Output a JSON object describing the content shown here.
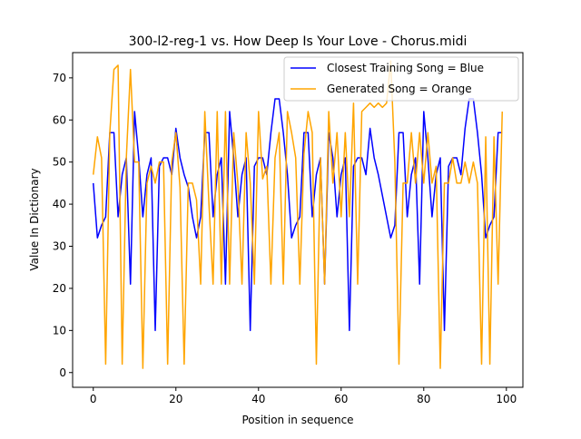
{
  "chart_data": {
    "type": "line",
    "title": "300-l2-reg-1 vs. How Deep Is Your Love - Chorus.midi",
    "xlabel": "Position in sequence",
    "ylabel": "Value In Dictionary",
    "xlim": [
      -5,
      104
    ],
    "ylim": [
      -3.5,
      76
    ],
    "xticks": [
      0,
      20,
      40,
      60,
      80,
      100
    ],
    "yticks": [
      0,
      10,
      20,
      30,
      40,
      50,
      60,
      70
    ],
    "grid": false,
    "legend_position": "upper right",
    "x": [
      0,
      1,
      2,
      3,
      4,
      5,
      6,
      7,
      8,
      9,
      10,
      11,
      12,
      13,
      14,
      15,
      16,
      17,
      18,
      19,
      20,
      21,
      22,
      23,
      24,
      25,
      26,
      27,
      28,
      29,
      30,
      31,
      32,
      33,
      34,
      35,
      36,
      37,
      38,
      39,
      40,
      41,
      42,
      43,
      44,
      45,
      46,
      47,
      48,
      49,
      50,
      51,
      52,
      53,
      54,
      55,
      56,
      57,
      58,
      59,
      60,
      61,
      62,
      63,
      64,
      65,
      66,
      67,
      68,
      69,
      70,
      71,
      72,
      73,
      74,
      75,
      76,
      77,
      78,
      79,
      80,
      81,
      82,
      83,
      84,
      85,
      86,
      87,
      88,
      89,
      90,
      91,
      92,
      93,
      94,
      95,
      96,
      97,
      98,
      99
    ],
    "series": [
      {
        "name": "Closest Training Song = Blue",
        "color": "#0000ff",
        "values": [
          45,
          32,
          35,
          37,
          57,
          57,
          37,
          47,
          51,
          21,
          62,
          51,
          37,
          47,
          51,
          10,
          49,
          51,
          51,
          47,
          58,
          51,
          47,
          44,
          37,
          32,
          37,
          57,
          57,
          37,
          47,
          51,
          21,
          62,
          51,
          37,
          47,
          51,
          10,
          49,
          51,
          51,
          47,
          57,
          65,
          65,
          57,
          47,
          32,
          35,
          37,
          57,
          57,
          37,
          47,
          51,
          21,
          57,
          51,
          37,
          47,
          51,
          10,
          49,
          51,
          51,
          47,
          58,
          51,
          47,
          42,
          37,
          32,
          35,
          57,
          57,
          37,
          47,
          51,
          21,
          62,
          51,
          37,
          47,
          51,
          10,
          49,
          51,
          51,
          47,
          58,
          65,
          65,
          57,
          47,
          32,
          35,
          37,
          57,
          57
        ]
      },
      {
        "name": "Generated Song = Orange",
        "color": "#ffa500",
        "values": [
          47,
          56,
          51,
          2,
          57,
          72,
          73,
          2,
          51,
          72,
          50,
          50,
          1,
          45,
          49,
          45,
          50,
          50,
          2,
          50,
          57,
          44,
          2,
          45,
          45,
          41,
          21,
          62,
          40,
          21,
          62,
          21,
          62,
          21,
          57,
          45,
          21,
          57,
          45,
          21,
          62,
          46,
          49,
          21,
          51,
          57,
          21,
          62,
          57,
          51,
          21,
          52,
          62,
          57,
          2,
          51,
          21,
          62,
          45,
          57,
          37,
          57,
          37,
          64,
          21,
          62,
          63,
          64,
          63,
          64,
          63,
          64,
          74,
          50,
          2,
          45,
          45,
          57,
          45,
          57,
          45,
          57,
          45,
          49,
          1,
          45,
          45,
          51,
          45,
          45,
          50,
          45,
          50,
          45,
          2,
          56,
          2,
          56,
          21,
          62
        ]
      }
    ]
  }
}
